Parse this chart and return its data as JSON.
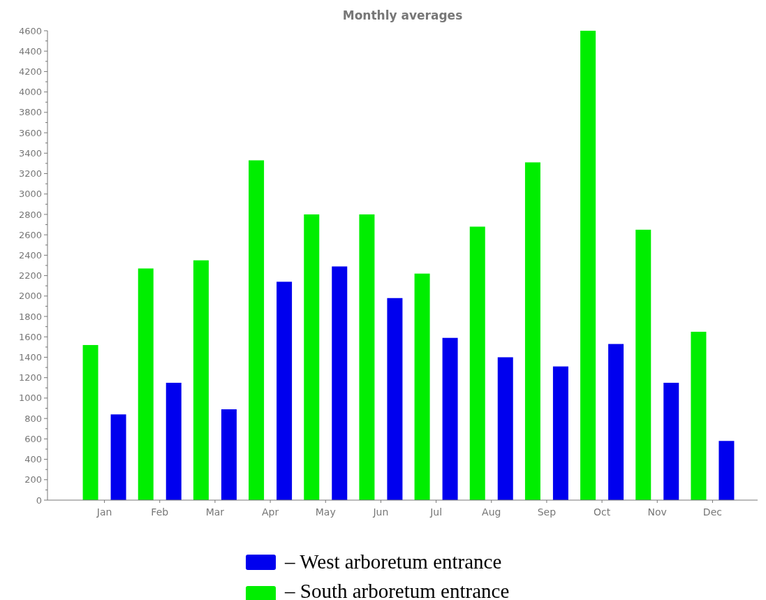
{
  "chart_data": {
    "type": "bar",
    "title": "Monthly averages",
    "categories": [
      "Jan",
      "Feb",
      "Mar",
      "Apr",
      "May",
      "Jun",
      "Jul",
      "Aug",
      "Sep",
      "Oct",
      "Nov",
      "Dec"
    ],
    "series": [
      {
        "name": "– South arboretum entrance",
        "color": "#00ee00",
        "values": [
          1520,
          2270,
          2350,
          3330,
          2800,
          2800,
          2220,
          2680,
          3310,
          4600,
          2650,
          1650
        ]
      },
      {
        "name": "– West arboretum entrance",
        "color": "#0000ee",
        "values": [
          840,
          1150,
          890,
          2140,
          2290,
          1980,
          1590,
          1400,
          1310,
          1530,
          1150,
          580
        ]
      }
    ],
    "ylim": [
      0,
      4600
    ],
    "yticks": [
      0,
      200,
      400,
      600,
      800,
      1000,
      1200,
      1400,
      1600,
      1800,
      2000,
      2200,
      2400,
      2600,
      2800,
      3000,
      3200,
      3400,
      3600,
      3800,
      4000,
      4200,
      4400,
      4600
    ],
    "legend": "bottom"
  }
}
